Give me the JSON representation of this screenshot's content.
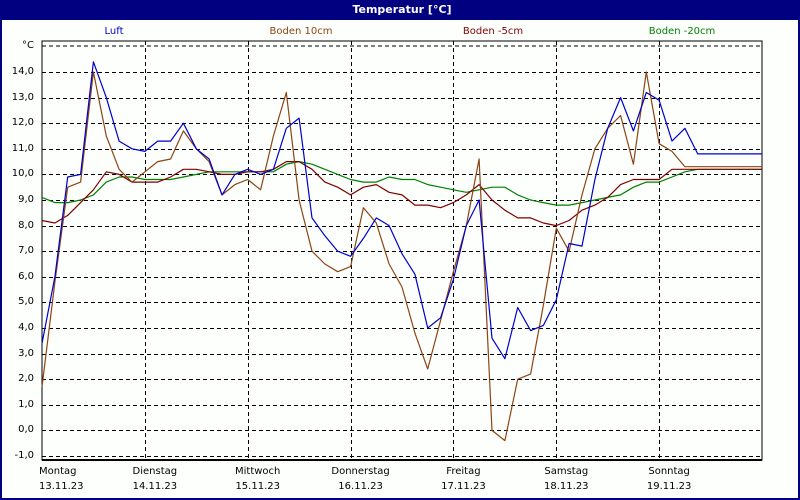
{
  "window": {
    "title": "Temperatur [°C]",
    "border_color": "#000080",
    "titlebar_color": "#000080"
  },
  "legend": [
    {
      "label": "Luft",
      "color": "#0000cc"
    },
    {
      "label": "Boden 10cm",
      "color": "#8b4513"
    },
    {
      "label": "Boden -5cm",
      "color": "#800000"
    },
    {
      "label": "Boden -20cm",
      "color": "#008000"
    }
  ],
  "y_axis": {
    "unit_label": "°C",
    "ticks": [
      "14,0",
      "13,0",
      "12,0",
      "11,0",
      "10,0",
      "9,0",
      "8,0",
      "7,0",
      "6,0",
      "5,0",
      "4,0",
      "3,0",
      "2,0",
      "1,0",
      "0,0",
      "-1,0"
    ]
  },
  "x_axis": {
    "days": [
      {
        "weekday": "Montag",
        "date": "13.11.23"
      },
      {
        "weekday": "Dienstag",
        "date": "14.11.23"
      },
      {
        "weekday": "Mittwoch",
        "date": "15.11.23"
      },
      {
        "weekday": "Donnerstag",
        "date": "16.11.23"
      },
      {
        "weekday": "Freitag",
        "date": "17.11.23"
      },
      {
        "weekday": "Samstag",
        "date": "18.11.23"
      },
      {
        "weekday": "Sonntag",
        "date": "19.11.23"
      }
    ]
  },
  "chart_data": {
    "type": "line",
    "title": "Temperatur [°C]",
    "xlabel": "",
    "ylabel": "°C",
    "ylim": [
      -1.0,
      15.0
    ],
    "grid": true,
    "legend_position": "top",
    "x_unit": "hours since Mon 13.11.23 00:00",
    "x": [
      0,
      3,
      6,
      9,
      12,
      15,
      18,
      21,
      24,
      27,
      30,
      33,
      36,
      39,
      42,
      45,
      48,
      51,
      54,
      57,
      60,
      63,
      66,
      69,
      72,
      75,
      78,
      81,
      84,
      87,
      90,
      93,
      96,
      99,
      102,
      105,
      108,
      111,
      114,
      117,
      120,
      123,
      126,
      129,
      132,
      135,
      138,
      141,
      144,
      147,
      150,
      153,
      156,
      159,
      162,
      165,
      168
    ],
    "categories": [
      "Montag 13.11.23",
      "Dienstag 14.11.23",
      "Mittwoch 15.11.23",
      "Donnerstag 16.11.23",
      "Freitag 17.11.23",
      "Samstag 18.11.23",
      "Sonntag 19.11.23"
    ],
    "series": [
      {
        "name": "Luft",
        "color": "#0000cc",
        "values": [
          3.4,
          6.0,
          9.9,
          10.0,
          14.4,
          13.0,
          11.3,
          11.0,
          10.9,
          11.3,
          11.3,
          12.0,
          11.0,
          10.6,
          9.2,
          10.0,
          10.2,
          10.0,
          10.2,
          11.8,
          12.2,
          8.3,
          7.6,
          7.0,
          6.8,
          7.5,
          8.3,
          8.0,
          6.9,
          6.1,
          4.0,
          4.4,
          5.9,
          8.0,
          9.0,
          3.6,
          2.8,
          4.8,
          3.9,
          4.1,
          5.1,
          7.3,
          7.2,
          9.8,
          11.8,
          13.0,
          11.7,
          13.2,
          12.9,
          11.3,
          11.8,
          10.8,
          10.8,
          10.8,
          10.8,
          10.8,
          10.8
        ]
      },
      {
        "name": "Boden 10cm",
        "color": "#8b4513",
        "values": [
          1.7,
          5.8,
          9.5,
          9.7,
          14.0,
          11.5,
          10.2,
          9.7,
          10.1,
          10.5,
          10.6,
          11.7,
          11.0,
          10.5,
          9.2,
          9.6,
          9.8,
          9.4,
          11.5,
          13.2,
          9.0,
          7.0,
          6.5,
          6.2,
          6.4,
          8.7,
          8.1,
          6.5,
          5.6,
          3.8,
          2.4,
          4.3,
          6.2,
          8.0,
          10.6,
          0.0,
          -0.4,
          2.0,
          2.2,
          4.9,
          7.9,
          7.0,
          9.2,
          11.0,
          11.8,
          12.3,
          10.4,
          14.0,
          11.2,
          10.9,
          10.3,
          10.3,
          10.3,
          10.3,
          10.3,
          10.3,
          10.3
        ]
      },
      {
        "name": "Boden -5cm",
        "color": "#800000",
        "values": [
          8.2,
          8.1,
          8.4,
          8.9,
          9.4,
          10.1,
          10.0,
          9.7,
          9.7,
          9.7,
          9.9,
          10.2,
          10.2,
          10.1,
          10.0,
          10.0,
          10.1,
          10.1,
          10.2,
          10.5,
          10.5,
          10.2,
          9.7,
          9.5,
          9.2,
          9.5,
          9.6,
          9.3,
          9.2,
          8.8,
          8.8,
          8.7,
          8.9,
          9.2,
          9.6,
          9.0,
          8.6,
          8.3,
          8.3,
          8.1,
          8.0,
          8.2,
          8.6,
          8.8,
          9.1,
          9.6,
          9.8,
          9.8,
          9.8,
          10.2,
          10.2,
          10.2,
          10.2,
          10.2,
          10.2,
          10.2,
          10.2
        ]
      },
      {
        "name": "Boden -20cm",
        "color": "#008000",
        "values": [
          9.1,
          8.9,
          8.9,
          9.0,
          9.2,
          9.7,
          9.9,
          9.9,
          9.8,
          9.8,
          9.8,
          9.9,
          10.0,
          10.1,
          10.1,
          10.1,
          10.1,
          10.1,
          10.1,
          10.4,
          10.5,
          10.4,
          10.2,
          10.0,
          9.8,
          9.7,
          9.7,
          9.9,
          9.8,
          9.8,
          9.6,
          9.5,
          9.4,
          9.3,
          9.4,
          9.5,
          9.5,
          9.2,
          9.0,
          8.9,
          8.8,
          8.8,
          8.9,
          9.0,
          9.1,
          9.2,
          9.5,
          9.7,
          9.7,
          9.9,
          10.1,
          10.2,
          10.2,
          10.2,
          10.2,
          10.2,
          10.2
        ]
      }
    ]
  }
}
